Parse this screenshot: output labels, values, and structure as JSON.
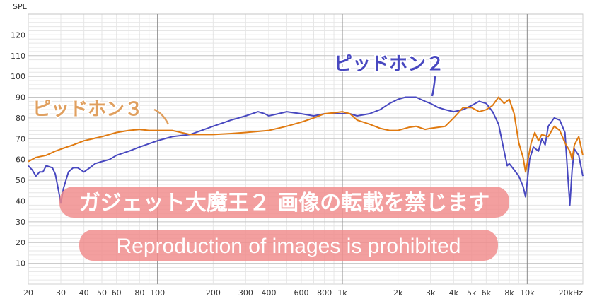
{
  "chart_data": {
    "type": "line",
    "title": "",
    "ylabel": "SPL",
    "xlabel": "",
    "x_scale": "log",
    "xlim": [
      20,
      20000
    ],
    "ylim": [
      0,
      130
    ],
    "grid": true,
    "x_ticks": [
      {
        "v": 20,
        "label": "20"
      },
      {
        "v": 30,
        "label": "30"
      },
      {
        "v": 40,
        "label": "40"
      },
      {
        "v": 50,
        "label": "50"
      },
      {
        "v": 60,
        "label": "60"
      },
      {
        "v": 80,
        "label": "80"
      },
      {
        "v": 100,
        "label": "100"
      },
      {
        "v": 200,
        "label": "200"
      },
      {
        "v": 300,
        "label": "300"
      },
      {
        "v": 400,
        "label": "400"
      },
      {
        "v": 600,
        "label": "600"
      },
      {
        "v": 800,
        "label": "800"
      },
      {
        "v": 1000,
        "label": "1k"
      },
      {
        "v": 2000,
        "label": "2k"
      },
      {
        "v": 3000,
        "label": "3k"
      },
      {
        "v": 4000,
        "label": "4k"
      },
      {
        "v": 5000,
        "label": "5k"
      },
      {
        "v": 6000,
        "label": "6k"
      },
      {
        "v": 8000,
        "label": "8k"
      },
      {
        "v": 10000,
        "label": "10k"
      },
      {
        "v": 20000,
        "label": "20kHz"
      }
    ],
    "y_ticks": [
      {
        "v": 10,
        "label": "10"
      },
      {
        "v": 20,
        "label": "20"
      },
      {
        "v": 30,
        "label": "30"
      },
      {
        "v": 40,
        "label": "40"
      },
      {
        "v": 50,
        "label": "50"
      },
      {
        "v": 60,
        "label": "60"
      },
      {
        "v": 70,
        "label": "70"
      },
      {
        "v": 80,
        "label": "80"
      },
      {
        "v": 90,
        "label": "90"
      },
      {
        "v": 100,
        "label": "100"
      },
      {
        "v": 110,
        "label": "110"
      },
      {
        "v": 120,
        "label": "120"
      }
    ],
    "series": [
      {
        "name": "ピッドホン２",
        "color": "#4848c0",
        "points": [
          [
            20,
            57
          ],
          [
            21,
            55
          ],
          [
            22,
            52
          ],
          [
            23,
            54
          ],
          [
            24,
            54
          ],
          [
            25,
            57
          ],
          [
            27,
            56
          ],
          [
            28,
            53
          ],
          [
            29,
            46
          ],
          [
            30,
            39
          ],
          [
            31,
            46
          ],
          [
            33,
            54
          ],
          [
            35,
            56
          ],
          [
            37,
            56
          ],
          [
            40,
            54
          ],
          [
            43,
            56
          ],
          [
            46,
            58
          ],
          [
            50,
            59
          ],
          [
            55,
            60
          ],
          [
            60,
            62
          ],
          [
            70,
            64
          ],
          [
            80,
            66
          ],
          [
            100,
            69
          ],
          [
            120,
            71
          ],
          [
            150,
            72
          ],
          [
            200,
            76
          ],
          [
            250,
            79
          ],
          [
            300,
            81
          ],
          [
            350,
            83
          ],
          [
            380,
            82
          ],
          [
            400,
            81
          ],
          [
            450,
            82
          ],
          [
            500,
            83
          ],
          [
            600,
            82
          ],
          [
            700,
            81
          ],
          [
            800,
            82
          ],
          [
            900,
            82
          ],
          [
            1000,
            82
          ],
          [
            1100,
            82
          ],
          [
            1200,
            81
          ],
          [
            1400,
            82
          ],
          [
            1600,
            84
          ],
          [
            1800,
            87
          ],
          [
            2000,
            89
          ],
          [
            2200,
            90
          ],
          [
            2500,
            90
          ],
          [
            2800,
            88
          ],
          [
            3000,
            87
          ],
          [
            3300,
            85
          ],
          [
            3600,
            84
          ],
          [
            4000,
            83
          ],
          [
            4500,
            84
          ],
          [
            5000,
            86
          ],
          [
            5500,
            88
          ],
          [
            6000,
            87
          ],
          [
            6500,
            83
          ],
          [
            7000,
            77
          ],
          [
            7500,
            64
          ],
          [
            7800,
            57
          ],
          [
            8000,
            58
          ],
          [
            8500,
            55
          ],
          [
            9000,
            52
          ],
          [
            9500,
            47
          ],
          [
            9800,
            42
          ],
          [
            10000,
            49
          ],
          [
            10300,
            60
          ],
          [
            10800,
            66
          ],
          [
            11500,
            64
          ],
          [
            12000,
            70
          ],
          [
            12500,
            67
          ],
          [
            13000,
            76
          ],
          [
            14000,
            80
          ],
          [
            15000,
            79
          ],
          [
            16000,
            73
          ],
          [
            16500,
            55
          ],
          [
            17000,
            38
          ],
          [
            17500,
            55
          ],
          [
            18000,
            65
          ],
          [
            19000,
            62
          ],
          [
            20000,
            52
          ]
        ]
      },
      {
        "name": "ピッドホン３",
        "color": "#e07a10",
        "points": [
          [
            20,
            59
          ],
          [
            22,
            61
          ],
          [
            25,
            62
          ],
          [
            28,
            64
          ],
          [
            30,
            65
          ],
          [
            35,
            67
          ],
          [
            40,
            69
          ],
          [
            50,
            71
          ],
          [
            60,
            73
          ],
          [
            70,
            74
          ],
          [
            80,
            74.5
          ],
          [
            90,
            74
          ],
          [
            100,
            74
          ],
          [
            120,
            74
          ],
          [
            150,
            72
          ],
          [
            200,
            72
          ],
          [
            250,
            72.5
          ],
          [
            300,
            73
          ],
          [
            400,
            74
          ],
          [
            500,
            76
          ],
          [
            600,
            78
          ],
          [
            700,
            80
          ],
          [
            800,
            82
          ],
          [
            900,
            82.5
          ],
          [
            1000,
            83
          ],
          [
            1100,
            82
          ],
          [
            1200,
            79
          ],
          [
            1400,
            77
          ],
          [
            1600,
            75
          ],
          [
            1800,
            74
          ],
          [
            2000,
            74
          ],
          [
            2300,
            75.5
          ],
          [
            2500,
            76
          ],
          [
            2800,
            74.5
          ],
          [
            3000,
            75
          ],
          [
            3300,
            75.5
          ],
          [
            3600,
            76
          ],
          [
            4000,
            80
          ],
          [
            4500,
            85
          ],
          [
            5000,
            85
          ],
          [
            5500,
            83
          ],
          [
            6000,
            84
          ],
          [
            6500,
            86
          ],
          [
            7000,
            90
          ],
          [
            7500,
            87
          ],
          [
            8000,
            89
          ],
          [
            8500,
            82
          ],
          [
            9000,
            68
          ],
          [
            9500,
            61
          ],
          [
            9800,
            54
          ],
          [
            10000,
            58
          ],
          [
            10500,
            68
          ],
          [
            11000,
            73
          ],
          [
            11500,
            69
          ],
          [
            12000,
            72
          ],
          [
            13000,
            71
          ],
          [
            14000,
            76
          ],
          [
            15000,
            74
          ],
          [
            16000,
            68
          ],
          [
            17000,
            64
          ],
          [
            17500,
            60
          ],
          [
            18000,
            67
          ],
          [
            19000,
            71
          ],
          [
            20000,
            62
          ]
        ]
      }
    ],
    "annotations": [
      {
        "text": "ピッドホン２",
        "series": 0
      },
      {
        "text": "ピッドホン３",
        "series": 1
      }
    ]
  },
  "watermark": {
    "line1": "ガジェット大魔王２ 画像の転載を禁じます",
    "line2": "Reproduction of images is prohibited"
  }
}
